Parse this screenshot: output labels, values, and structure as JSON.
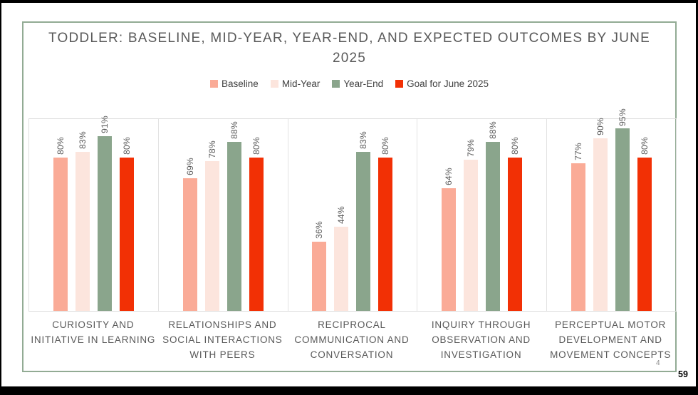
{
  "page": {
    "page_number": "59",
    "footnote_marker": "4"
  },
  "chart_data": {
    "type": "bar",
    "title": "TODDLER: BASELINE, MID-YEAR, YEAR-END, AND EXPECTED OUTCOMES BY JUNE 2025",
    "title_line1": "TODDLER: BASELINE, MID-YEAR, YEAR-END, AND EXPECTED OUTCOMES BY JUNE",
    "title_line2": "2025",
    "categories": [
      "CURIOSITY AND INITIATIVE IN LEARNING",
      "RELATIONSHIPS AND SOCIAL INTERACTIONS WITH PEERS",
      "RECIPROCAL COMMUNICATION AND CONVERSATION",
      "INQUIRY THROUGH OBSERVATION AND INVESTIGATION",
      "PERCEPTUAL MOTOR DEVELOPMENT AND MOVEMENT CONCEPTS"
    ],
    "series": [
      {
        "name": "Baseline",
        "color": "#FAAB97",
        "values": [
          80,
          69,
          36,
          64,
          77
        ]
      },
      {
        "name": "Mid-Year",
        "color": "#FCE5DD",
        "values": [
          83,
          78,
          44,
          79,
          90
        ]
      },
      {
        "name": "Year-End",
        "color": "#8AA58C",
        "values": [
          91,
          88,
          83,
          88,
          95
        ]
      },
      {
        "name": "Goal for June 2025",
        "color": "#F23005",
        "values": [
          80,
          80,
          80,
          80,
          80
        ]
      }
    ],
    "value_format": "percent",
    "data_labels": true,
    "data_label_rotation": -90,
    "ylim": [
      0,
      100
    ],
    "legend_position": "top",
    "grid": false,
    "colors": {
      "chart_border": "#92AB94",
      "plot_border": "#DDDDDD",
      "text": "#595959",
      "slide_frame": "#000000",
      "background": "#FFFFFF"
    }
  }
}
